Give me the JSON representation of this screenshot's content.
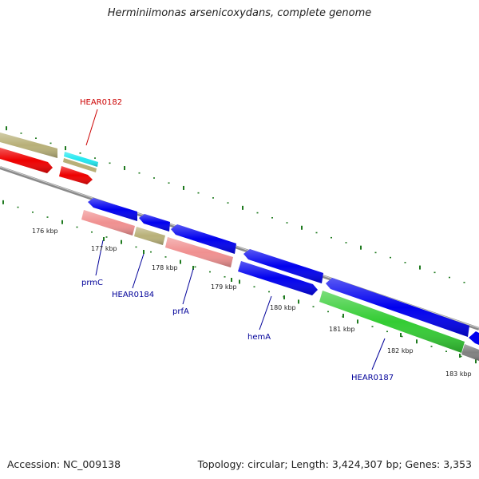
{
  "title": "Herminiimonas arsenicoxydans, complete genome",
  "footer": {
    "accession": "Accession: NC_009138",
    "summary": "Topology: circular; Length: 3,424,307 bp; Genes: 3,353"
  },
  "colors": {
    "backbone": "#8a8a8a",
    "tick": "#1f7a1f",
    "cds_forward": "#ee0000",
    "cds_reverse": "#0000ee",
    "rrna": "#b8b078",
    "trna": "#22e8f0",
    "misc": "#f09090",
    "other": "#33cc33",
    "grey_feature": "#808080",
    "label_red": "#cc0000",
    "label_blue": "#000099"
  },
  "tick_labels": [
    "176 kbp",
    "177 kbp",
    "178 kbp",
    "179 kbp",
    "180 kbp",
    "181 kbp",
    "182 kbp",
    "183 kbp"
  ],
  "gene_labels": [
    {
      "name": "HEAR0182",
      "color_key": "label_red"
    },
    {
      "name": "prmC",
      "color_key": "label_blue"
    },
    {
      "name": "HEAR0184",
      "color_key": "label_blue"
    },
    {
      "name": "prfA",
      "color_key": "label_blue"
    },
    {
      "name": "hemA",
      "color_key": "label_blue"
    },
    {
      "name": "HEAR0187",
      "color_key": "label_blue"
    }
  ],
  "features": [
    {
      "name": "outer-rrna-1",
      "color_key": "rrna"
    },
    {
      "name": "outer-red-cds-1",
      "color_key": "cds_forward"
    },
    {
      "name": "outer-trna-HEAR0182",
      "color_key": "trna"
    },
    {
      "name": "outer-rrna-2",
      "color_key": "rrna"
    },
    {
      "name": "outer-red-cds-2",
      "color_key": "cds_forward"
    },
    {
      "name": "inner-blue-cds-1",
      "color_key": "cds_reverse"
    },
    {
      "name": "inner-pink-prmC",
      "color_key": "misc"
    },
    {
      "name": "inner-blue-cds-2",
      "color_key": "cds_reverse"
    },
    {
      "name": "inner-olive-HEAR0184",
      "color_key": "rrna"
    },
    {
      "name": "inner-blue-cds-3",
      "color_key": "cds_reverse"
    },
    {
      "name": "inner-pink-prfA",
      "color_key": "misc"
    },
    {
      "name": "inner-blue-cds-4",
      "color_key": "cds_reverse"
    },
    {
      "name": "inner-blue-hemA",
      "color_key": "cds_reverse"
    },
    {
      "name": "inner-blue-cds-5",
      "color_key": "cds_reverse"
    },
    {
      "name": "inner-green-HEAR0187",
      "color_key": "other"
    },
    {
      "name": "inner-blue-cds-6",
      "color_key": "cds_reverse"
    },
    {
      "name": "inner-grey-cds",
      "color_key": "grey_feature"
    }
  ]
}
